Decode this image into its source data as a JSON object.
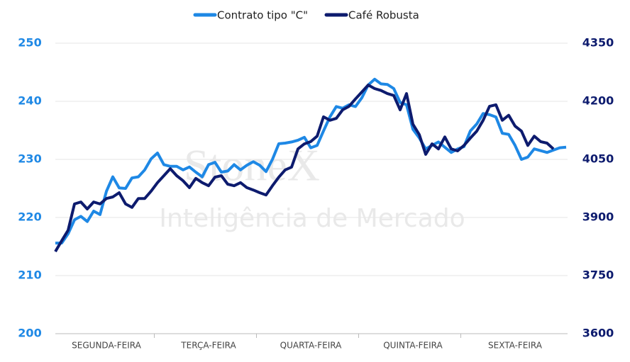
{
  "chart_data": {
    "type": "line",
    "watermark": [
      "StoneX",
      "Inteligência de Mercado"
    ],
    "categories": [
      null,
      null,
      null,
      null,
      null,
      null,
      null,
      null,
      "SEGUNDA-FEIRA",
      null,
      null,
      null,
      null,
      null,
      null,
      null,
      null,
      null,
      null,
      null,
      null,
      null,
      null,
      null,
      "TERÇA-FEIRA",
      null,
      null,
      null,
      null,
      null,
      null,
      null,
      null,
      null,
      null,
      null,
      null,
      null,
      null,
      null,
      "QUARTA-FEIRA",
      null,
      null,
      null,
      null,
      null,
      null,
      null,
      null,
      null,
      null,
      null,
      null,
      null,
      null,
      null,
      "QUINTA-FEIRA",
      null,
      null,
      null,
      null,
      null,
      null,
      null,
      null,
      null,
      null,
      null,
      null,
      null,
      null,
      null,
      "SEXTA-FEIRA",
      null,
      null,
      null,
      null,
      null,
      null,
      null,
      null
    ],
    "series": [
      {
        "name": "Contrato tipo \"C\"",
        "color": "#1e88e5",
        "axis": "y",
        "values": [
          215.6,
          215.6,
          217.2,
          219.6,
          220.2,
          219.3,
          221.1,
          220.5,
          224.5,
          227,
          225.1,
          225,
          226.8,
          227,
          228.2,
          230.1,
          231.1,
          229.1,
          228.8,
          228.8,
          228.2,
          228.7,
          227.8,
          227,
          229.1,
          229.5,
          227.8,
          228,
          229.1,
          228.2,
          229,
          229.6,
          229,
          227.9,
          230,
          232.7,
          232.8,
          233,
          233.3,
          233.8,
          232,
          232.4,
          234.9,
          237.3,
          239.1,
          238.8,
          239.4,
          239.1,
          240.6,
          242.8,
          243.8,
          243,
          242.9,
          242.2,
          239.8,
          239.4,
          235.2,
          233.7,
          231.8,
          232.4,
          233,
          232.1,
          231.2,
          231.8,
          232.2,
          234.9,
          236.1,
          237.9,
          237.7,
          237.3,
          234.5,
          234.3,
          232.4,
          230,
          230.4,
          231.8,
          231.5,
          231.2,
          231.6,
          232,
          232.1
        ]
      },
      {
        "name": "Café Robusta",
        "color": "#0d1b6e",
        "axis": "y2",
        "values": [
          3812,
          3840,
          3867,
          3935,
          3940,
          3922,
          3940,
          3935,
          3949,
          3953,
          3964,
          3935,
          3926,
          3949,
          3949,
          3968,
          3990,
          4008,
          4026,
          4008,
          3995,
          3977,
          4001,
          3990,
          3982,
          4004,
          4008,
          3986,
          3982,
          3990,
          3977,
          3971,
          3964,
          3958,
          3982,
          4004,
          4023,
          4030,
          4077,
          4090,
          4096,
          4110,
          4160,
          4151,
          4156,
          4178,
          4187,
          4206,
          4224,
          4242,
          4233,
          4228,
          4220,
          4215,
          4178,
          4220,
          4141,
          4114,
          4063,
          4090,
          4077,
          4108,
          4077,
          4072,
          4086,
          4105,
          4123,
          4151,
          4187,
          4191,
          4151,
          4164,
          4136,
          4123,
          4086,
          4110,
          4096,
          4092,
          4077,
          null,
          null
        ]
      }
    ],
    "ylim": [
      200,
      250
    ],
    "yticks": [
      200,
      210,
      220,
      230,
      240,
      250
    ],
    "y2lim": [
      3600,
      4350
    ],
    "y2ticks": [
      3600,
      3750,
      3900,
      4050,
      4200,
      4350
    ],
    "grid": true
  }
}
